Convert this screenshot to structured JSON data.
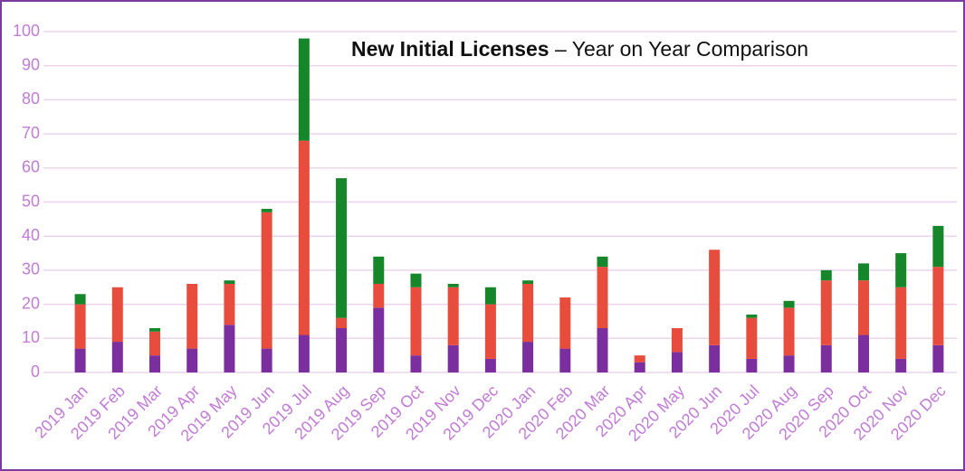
{
  "chart_data": {
    "type": "stacked-bar",
    "title": {
      "bold": "New Initial Licenses",
      "rest": "– Year on Year Comparison"
    },
    "categories": [
      "2019 Jan",
      "2019 Feb",
      "2019 Mar",
      "2019 Apr",
      "2019 May",
      "2019 Jun",
      "2019 Jul",
      "2019 Aug",
      "2019 Sep",
      "2019 Oct",
      "2019 Nov",
      "2019 Dec",
      "2020 Jan",
      "2020 Feb",
      "2020 Mar",
      "2020 Apr",
      "2020 May",
      "2020 Jun",
      "2020 Jul",
      "2020 Aug",
      "2020 Sep",
      "2020 Oct",
      "2020 Nov",
      "2020 Dec"
    ],
    "series": [
      {
        "color": "#7b2f9e",
        "values": [
          7,
          9,
          5,
          7,
          14,
          7,
          11,
          13,
          19,
          5,
          8,
          4,
          9,
          7,
          13,
          3,
          6,
          8,
          4,
          5,
          8,
          11,
          4,
          8
        ]
      },
      {
        "color": "#e84c3d",
        "values": [
          13,
          16,
          7,
          19,
          12,
          40,
          57,
          3,
          7,
          20,
          17,
          16,
          17,
          15,
          18,
          2,
          7,
          28,
          12,
          14,
          19,
          16,
          21,
          23
        ]
      },
      {
        "color": "#16862a",
        "values": [
          3,
          0,
          1,
          0,
          1,
          1,
          30,
          41,
          8,
          4,
          1,
          5,
          1,
          0,
          3,
          0,
          0,
          0,
          1,
          2,
          3,
          5,
          10,
          12
        ]
      }
    ],
    "ylim": [
      0,
      100
    ],
    "yticks": [
      0,
      10,
      20,
      30,
      40,
      50,
      60,
      70,
      80,
      90,
      100
    ],
    "grid": true
  }
}
